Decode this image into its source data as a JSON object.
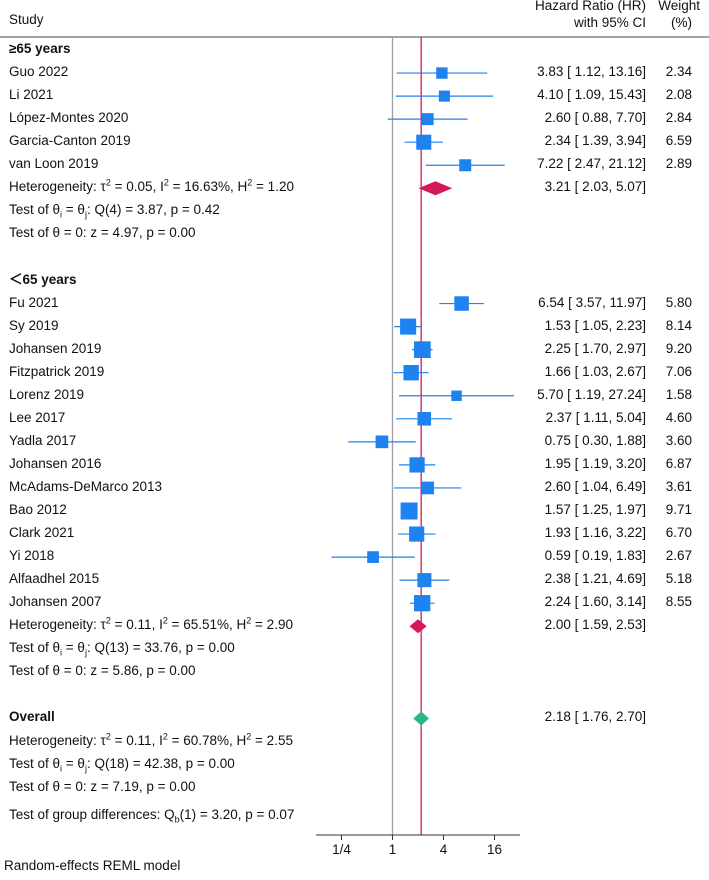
{
  "chart_data": {
    "type": "forest",
    "columns": {
      "study": "Study",
      "hr_line1": "Hazard Ratio (HR)",
      "hr_line2": "with 95% CI",
      "weight_line1": "Weight",
      "weight_line2": "(%)"
    },
    "x_scale": "log2",
    "xlim": [
      0.125,
      32
    ],
    "x_ticks": [
      0.25,
      1,
      4,
      16
    ],
    "x_tick_labels": [
      "1/4",
      "1",
      "4",
      "16"
    ],
    "reference_line": 1,
    "overall_line": 2.18,
    "groups": [
      {
        "label": "≥65 years",
        "studies": [
          {
            "name": "Guo 2022",
            "hr": 3.83,
            "lo": 1.12,
            "hi": 13.16,
            "weight": 2.34,
            "ci_text": "3.83 [ 1.12, 13.16]",
            "weight_text": "2.34"
          },
          {
            "name": "Li 2021",
            "hr": 4.1,
            "lo": 1.09,
            "hi": 15.43,
            "weight": 2.08,
            "ci_text": "4.10 [ 1.09, 15.43]",
            "weight_text": "2.08"
          },
          {
            "name": "López-Montes 2020",
            "hr": 2.6,
            "lo": 0.88,
            "hi": 7.7,
            "weight": 2.84,
            "ci_text": "2.60 [ 0.88,  7.70]",
            "weight_text": "2.84"
          },
          {
            "name": "Garcia-Canton 2019",
            "hr": 2.34,
            "lo": 1.39,
            "hi": 3.94,
            "weight": 6.59,
            "ci_text": "2.34 [ 1.39,  3.94]",
            "weight_text": "6.59"
          },
          {
            "name": "van Loon 2019",
            "hr": 7.22,
            "lo": 2.47,
            "hi": 21.12,
            "weight": 2.89,
            "ci_text": "7.22 [ 2.47, 21.12]",
            "weight_text": "2.89"
          }
        ],
        "pooled": {
          "hr": 3.21,
          "lo": 2.03,
          "hi": 5.07,
          "ci_text": "3.21 [ 2.03,  5.07]"
        },
        "heterogeneity": {
          "prefix": "Heterogeneity: τ",
          "tau2": " = 0.05, I",
          "i2": " = 16.63%, H",
          "h2": " = 1.20"
        },
        "homogeneity_test": {
          "prefix": "Test of θ",
          "mid": " = θ",
          "suffix": ": Q(4) = 3.87, p = 0.42"
        },
        "effect_test": "Test of θ = 0: z = 4.97, p = 0.00"
      },
      {
        "label": "＜65 years",
        "studies": [
          {
            "name": "Fu 2021",
            "hr": 6.54,
            "lo": 3.57,
            "hi": 11.97,
            "weight": 5.8,
            "ci_text": "6.54 [ 3.57, 11.97]",
            "weight_text": "5.80"
          },
          {
            "name": "Sy 2019",
            "hr": 1.53,
            "lo": 1.05,
            "hi": 2.23,
            "weight": 8.14,
            "ci_text": "1.53 [ 1.05,  2.23]",
            "weight_text": "8.14"
          },
          {
            "name": "Johansen 2019",
            "hr": 2.25,
            "lo": 1.7,
            "hi": 2.97,
            "weight": 9.2,
            "ci_text": "2.25 [ 1.70,  2.97]",
            "weight_text": "9.20"
          },
          {
            "name": "Fitzpatrick 2019",
            "hr": 1.66,
            "lo": 1.03,
            "hi": 2.67,
            "weight": 7.06,
            "ci_text": "1.66 [ 1.03,  2.67]",
            "weight_text": "7.06"
          },
          {
            "name": "Lorenz 2019",
            "hr": 5.7,
            "lo": 1.19,
            "hi": 27.24,
            "weight": 1.58,
            "ci_text": "5.70 [ 1.19, 27.24]",
            "weight_text": "1.58"
          },
          {
            "name": "Lee 2017",
            "hr": 2.37,
            "lo": 1.11,
            "hi": 5.04,
            "weight": 4.6,
            "ci_text": "2.37 [ 1.11,  5.04]",
            "weight_text": "4.60"
          },
          {
            "name": "Yadla 2017",
            "hr": 0.75,
            "lo": 0.3,
            "hi": 1.88,
            "weight": 3.6,
            "ci_text": "0.75 [ 0.30,  1.88]",
            "weight_text": "3.60"
          },
          {
            "name": "Johansen 2016",
            "hr": 1.95,
            "lo": 1.19,
            "hi": 3.2,
            "weight": 6.87,
            "ci_text": "1.95 [ 1.19,  3.20]",
            "weight_text": "6.87"
          },
          {
            "name": "McAdams-DeMarco 2013",
            "hr": 2.6,
            "lo": 1.04,
            "hi": 6.49,
            "weight": 3.61,
            "ci_text": "2.60 [ 1.04,  6.49]",
            "weight_text": "3.61"
          },
          {
            "name": "Bao 2012",
            "hr": 1.57,
            "lo": 1.25,
            "hi": 1.97,
            "weight": 9.71,
            "ci_text": "1.57 [ 1.25,  1.97]",
            "weight_text": "9.71"
          },
          {
            "name": "Clark 2021",
            "hr": 1.93,
            "lo": 1.16,
            "hi": 3.22,
            "weight": 6.7,
            "ci_text": "1.93 [ 1.16,  3.22]",
            "weight_text": "6.70"
          },
          {
            "name": "Yi 2018",
            "hr": 0.59,
            "lo": 0.19,
            "hi": 1.83,
            "weight": 2.67,
            "ci_text": "0.59 [ 0.19,  1.83]",
            "weight_text": "2.67"
          },
          {
            "name": "Alfaadhel 2015",
            "hr": 2.38,
            "lo": 1.21,
            "hi": 4.69,
            "weight": 5.18,
            "ci_text": "2.38 [ 1.21,  4.69]",
            "weight_text": "5.18"
          },
          {
            "name": "Johansen 2007",
            "hr": 2.24,
            "lo": 1.6,
            "hi": 3.14,
            "weight": 8.55,
            "ci_text": "2.24 [ 1.60,  3.14]",
            "weight_text": "8.55"
          }
        ],
        "pooled": {
          "hr": 2.0,
          "lo": 1.59,
          "hi": 2.53,
          "ci_text": "2.00 [ 1.59,  2.53]"
        },
        "heterogeneity": {
          "prefix": "Heterogeneity: τ",
          "tau2": " = 0.11, I",
          "i2": " = 65.51%, H",
          "h2": " = 2.90"
        },
        "homogeneity_test": {
          "prefix": "Test of θ",
          "mid": " = θ",
          "suffix": ": Q(13) = 33.76, p = 0.00"
        },
        "effect_test": "Test of θ = 0: z = 5.86, p = 0.00"
      }
    ],
    "overall": {
      "label": "Overall",
      "hr": 2.18,
      "lo": 1.76,
      "hi": 2.7,
      "ci_text": "2.18 [ 1.76,  2.70]",
      "heterogeneity": {
        "prefix": "Heterogeneity: τ",
        "tau2": " = 0.11, I",
        "i2": " = 60.78%, H",
        "h2": " = 2.55"
      },
      "homogeneity_test": {
        "prefix": "Test of θ",
        "mid": " = θ",
        "suffix": ": Q(18) = 42.38, p = 0.00"
      },
      "effect_test": "Test of θ = 0: z = 7.19, p = 0.00"
    },
    "group_difference_test": {
      "prefix": "Test of group differences: Q",
      "sub": "b",
      "suffix": "(1) = 3.20, p = 0.07"
    },
    "footnote": "Random-effects REML model",
    "colors": {
      "marker": "#1e82f0",
      "ci_line": "#1e82f0",
      "subgroup_diamond": "#d6175a",
      "overall_diamond": "#2db48c",
      "overall_line": "#d6175a",
      "null_line": "#a0a0a0",
      "axis": "#333333"
    }
  }
}
